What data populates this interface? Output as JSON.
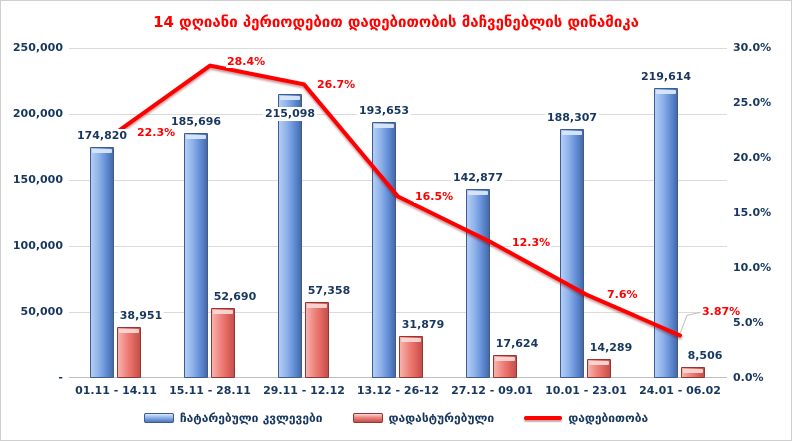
{
  "title": "14 დღიანი პერიოდებით დადებითობის მაჩვენებლის დინამიკა",
  "chart_data": {
    "type": "bar",
    "subtype": "combo-bar-line",
    "title": "14 დღიანი პერიოდებით დადებითობის მაჩვენებლის დინამიკა",
    "categories": [
      "01.11 - 14.11",
      "15.11 - 28.11",
      "29.11 - 12.12",
      "13.12 - 26-12",
      "27.12 - 09.01",
      "10.01 - 23.01",
      "24.01 - 06.02"
    ],
    "series": [
      {
        "name": "ჩატარებული კვლევები",
        "type": "bar",
        "axis": "left",
        "values": [
          174820,
          185696,
          215098,
          193653,
          142877,
          188307,
          219614
        ],
        "labels": [
          "174,820",
          "185,696",
          "215,098",
          "193,653",
          "142,877",
          "188,307",
          "219,614"
        ]
      },
      {
        "name": "დადასტურებული",
        "type": "bar",
        "axis": "left",
        "values": [
          38951,
          52690,
          57358,
          31879,
          17624,
          14289,
          8506
        ],
        "labels": [
          "38,951",
          "52,690",
          "57,358",
          "31,879",
          "17,624",
          "14,289",
          "8,506"
        ]
      },
      {
        "name": "დადებითობა",
        "type": "line",
        "axis": "right",
        "values": [
          22.3,
          28.4,
          26.7,
          16.5,
          12.3,
          7.6,
          3.87
        ],
        "labels": [
          "22.3%",
          "28.4%",
          "26.7%",
          "16.5%",
          "12.3%",
          "7.6%",
          "3.87%"
        ]
      }
    ],
    "left_axis": {
      "min": 0,
      "max": 250000,
      "ticks": [
        "250,000",
        "200,000",
        "150,000",
        "100,000",
        "50,000",
        "-"
      ]
    },
    "right_axis": {
      "min": 0,
      "max": 30,
      "ticks": [
        "30.0%",
        "25.0%",
        "20.0%",
        "15.0%",
        "10.0%",
        "5.0%",
        "0.0%"
      ]
    },
    "grid": true,
    "legend_position": "bottom",
    "colors": {
      "bar_conducted": "#6D9EEA",
      "bar_confirmed": "#E4635C",
      "line_positivity": "#FF0000",
      "title_text": "#FF0000",
      "axis_text": "#17375E",
      "gridline": "#DBDBDB"
    }
  }
}
